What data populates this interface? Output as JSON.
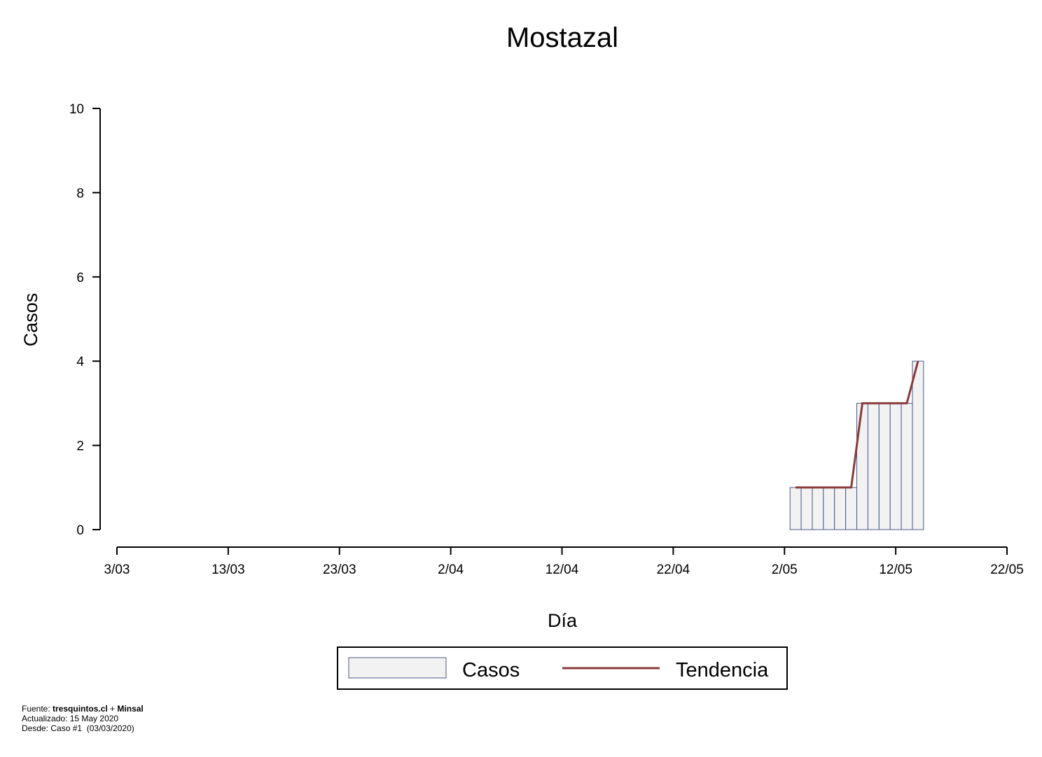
{
  "chart_data": {
    "type": "bar",
    "title": "Mostazal",
    "xlabel": "Día",
    "ylabel": "Casos",
    "x_ticks": [
      "3/03",
      "13/03",
      "23/03",
      "2/04",
      "12/04",
      "22/04",
      "2/05",
      "12/05",
      "22/05"
    ],
    "y_ticks": [
      "0",
      "2",
      "4",
      "6",
      "8",
      "10"
    ],
    "ylim": [
      0,
      10
    ],
    "xlim": [
      "2020-03-03",
      "2020-05-22"
    ],
    "grid": false,
    "legend_position": "bottom",
    "series": [
      {
        "name": "Casos",
        "type": "bar",
        "color": "#f2f2f2",
        "edge_color": "#4a5a8a",
        "points": [
          {
            "date": "2020-05-03",
            "value": 1
          },
          {
            "date": "2020-05-04",
            "value": 1
          },
          {
            "date": "2020-05-05",
            "value": 1
          },
          {
            "date": "2020-05-06",
            "value": 1
          },
          {
            "date": "2020-05-07",
            "value": 1
          },
          {
            "date": "2020-05-08",
            "value": 1
          },
          {
            "date": "2020-05-09",
            "value": 3
          },
          {
            "date": "2020-05-10",
            "value": 3
          },
          {
            "date": "2020-05-11",
            "value": 3
          },
          {
            "date": "2020-05-12",
            "value": 3
          },
          {
            "date": "2020-05-13",
            "value": 3
          },
          {
            "date": "2020-05-14",
            "value": 4
          }
        ]
      },
      {
        "name": "Tendencia",
        "type": "line",
        "color": "#8b3a3a",
        "points": [
          {
            "date": "2020-05-03",
            "value": 1
          },
          {
            "date": "2020-05-04",
            "value": 1
          },
          {
            "date": "2020-05-05",
            "value": 1
          },
          {
            "date": "2020-05-06",
            "value": 1
          },
          {
            "date": "2020-05-07",
            "value": 1
          },
          {
            "date": "2020-05-08",
            "value": 1
          },
          {
            "date": "2020-05-09",
            "value": 3
          },
          {
            "date": "2020-05-10",
            "value": 3
          },
          {
            "date": "2020-05-11",
            "value": 3
          },
          {
            "date": "2020-05-12",
            "value": 3
          },
          {
            "date": "2020-05-13",
            "value": 3
          },
          {
            "date": "2020-05-14",
            "value": 4
          }
        ]
      }
    ]
  },
  "footer": {
    "source_prefix": "Fuente: ",
    "source_name": "tresquintos.cl",
    "source_joiner": " + ",
    "source_partner": "Minsal",
    "updated": "Actualizado: 15 May 2020",
    "since": "Desde: Caso #1  (03/03/2020)"
  }
}
